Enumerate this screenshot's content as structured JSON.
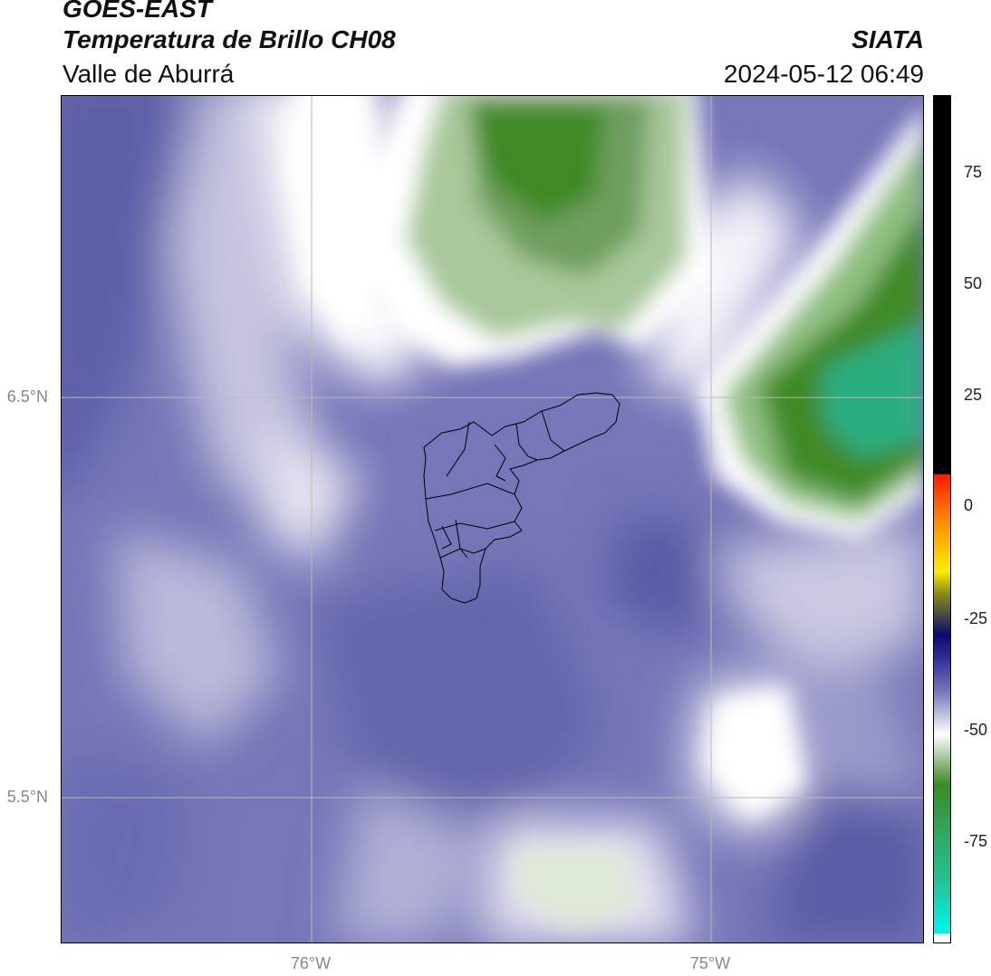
{
  "header": {
    "line1": "GOES-EAST",
    "line2": "Temperatura de Brillo CH08",
    "line3": "Valle de Aburrá",
    "agency": "SIATA",
    "datetime": "2024-05-12 06:49"
  },
  "map": {
    "lat_labels": [
      {
        "text": "6.5°N",
        "value": 6.5
      },
      {
        "text": "5.5°N",
        "value": 5.5
      }
    ],
    "lon_labels": [
      {
        "text": "76°W",
        "value": -76
      },
      {
        "text": "75°W",
        "value": -75
      }
    ],
    "lat_range": [
      5.13,
      7.25
    ],
    "lon_range": [
      -76.62,
      -74.46
    ]
  },
  "colorbar": {
    "range": [
      -95,
      92
    ],
    "ticks": [
      {
        "text": "75",
        "value": 75
      },
      {
        "text": "50",
        "value": 50
      },
      {
        "text": "25",
        "value": 25
      },
      {
        "text": "0",
        "value": 0
      },
      {
        "text": "-25",
        "value": -25
      },
      {
        "text": "-50",
        "value": -50
      },
      {
        "text": "-75",
        "value": -75
      }
    ],
    "colors": {
      "black": "#000000",
      "red": "#ff1a00",
      "orange": "#ff8c00",
      "yellow": "#ffee00",
      "olive": "#8a8a1a",
      "navy": "#0a0a6e",
      "blue": "#2e2e96",
      "lavender": "#7c7cbf",
      "white": "#ffffff",
      "green": "#3d8a26",
      "teal": "#1fc9a0",
      "cyan": "#00f0e6"
    }
  }
}
